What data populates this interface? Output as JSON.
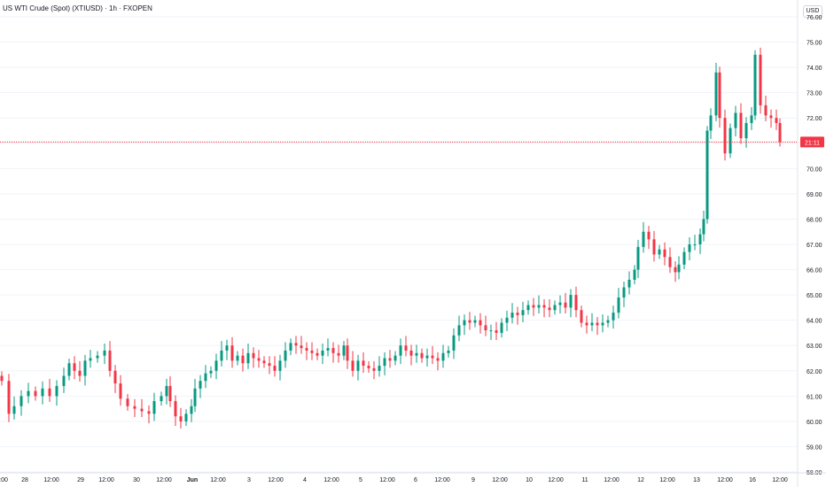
{
  "chart_data": {
    "type": "candlestick",
    "title": "US WTI Crude (Spot) (XTIUSD) · 1h · FXOPEN",
    "currency": "USD",
    "ylim": [
      58,
      76
    ],
    "y_ticks": [
      "76.00",
      "75.00",
      "74.00",
      "73.00",
      "72.00",
      "71.00",
      "70.00",
      "69.00",
      "68.00",
      "67.00",
      "66.00",
      "65.00",
      "64.00",
      "63.00",
      "62.00",
      "61.00",
      "60.00",
      "59.00",
      "58.00"
    ],
    "x_ticks": [
      ":00",
      "28",
      "12:00",
      "29",
      "12:00",
      "30",
      "12:00",
      "Jun",
      "12:00",
      "3",
      "12:00",
      "4",
      "12:00",
      "5",
      "12:00",
      "6",
      "12:00",
      "9",
      "12:00",
      "10",
      "12:00",
      "11",
      "12:00",
      "12",
      "12:00",
      "13",
      "12:00",
      "16",
      "12:00"
    ],
    "current_price_label": "21:11",
    "current_price": 71.05,
    "colors": {
      "up": "#089981",
      "down": "#f23645",
      "grid": "#f0f3fa",
      "price_line": "#f23645"
    },
    "ohlc_path": [
      [
        0,
        61.6
      ],
      [
        8,
        60.3
      ],
      [
        14,
        60.6
      ],
      [
        22,
        61.0
      ],
      [
        30,
        61.2
      ],
      [
        38,
        61.0
      ],
      [
        46,
        61.3
      ],
      [
        54,
        61.0
      ],
      [
        62,
        61.4
      ],
      [
        70,
        61.8
      ],
      [
        76,
        62.3
      ],
      [
        82,
        62.0
      ],
      [
        88,
        61.8
      ],
      [
        94,
        62.4
      ],
      [
        100,
        62.5
      ],
      [
        108,
        62.6
      ],
      [
        116,
        62.8
      ],
      [
        122,
        62.0
      ],
      [
        128,
        61.5
      ],
      [
        134,
        60.9
      ],
      [
        142,
        60.6
      ],
      [
        150,
        60.5
      ],
      [
        158,
        60.4
      ],
      [
        166,
        60.3
      ],
      [
        172,
        60.8
      ],
      [
        180,
        61.0
      ],
      [
        186,
        61.4
      ],
      [
        190,
        60.8
      ],
      [
        196,
        60.2
      ],
      [
        202,
        60.0
      ],
      [
        208,
        60.3
      ],
      [
        214,
        60.6
      ],
      [
        218,
        61.3
      ],
      [
        224,
        61.6
      ],
      [
        230,
        61.9
      ],
      [
        236,
        62.0
      ],
      [
        242,
        62.4
      ],
      [
        248,
        62.8
      ],
      [
        254,
        63.0
      ],
      [
        260,
        62.4
      ],
      [
        266,
        62.6
      ],
      [
        272,
        62.3
      ],
      [
        278,
        62.7
      ],
      [
        284,
        62.5
      ],
      [
        290,
        62.4
      ],
      [
        296,
        62.3
      ],
      [
        302,
        62.2
      ],
      [
        308,
        62.0
      ],
      [
        314,
        62.4
      ],
      [
        320,
        62.8
      ],
      [
        326,
        63.1
      ],
      [
        332,
        63.0
      ],
      [
        338,
        62.9
      ],
      [
        344,
        62.8
      ],
      [
        350,
        62.7
      ],
      [
        356,
        62.6
      ],
      [
        362,
        62.8
      ],
      [
        368,
        62.9
      ],
      [
        374,
        62.7
      ],
      [
        380,
        62.6
      ],
      [
        386,
        63.0
      ],
      [
        390,
        62.4
      ],
      [
        396,
        62.0
      ],
      [
        402,
        62.4
      ],
      [
        408,
        62.2
      ],
      [
        414,
        62.1
      ],
      [
        420,
        62.0
      ],
      [
        426,
        62.2
      ],
      [
        432,
        62.5
      ],
      [
        438,
        62.4
      ],
      [
        444,
        62.6
      ],
      [
        450,
        63.0
      ],
      [
        456,
        62.8
      ],
      [
        462,
        62.6
      ],
      [
        468,
        62.7
      ],
      [
        474,
        62.5
      ],
      [
        480,
        62.6
      ],
      [
        486,
        62.5
      ],
      [
        492,
        62.4
      ],
      [
        498,
        62.7
      ],
      [
        504,
        62.8
      ],
      [
        510,
        63.4
      ],
      [
        516,
        63.8
      ],
      [
        522,
        64.0
      ],
      [
        528,
        63.9
      ],
      [
        534,
        64.0
      ],
      [
        540,
        63.8
      ],
      [
        546,
        63.6
      ],
      [
        552,
        63.6
      ],
      [
        558,
        63.5
      ],
      [
        564,
        63.9
      ],
      [
        570,
        64.1
      ],
      [
        576,
        64.3
      ],
      [
        582,
        64.2
      ],
      [
        588,
        64.4
      ],
      [
        594,
        64.6
      ],
      [
        600,
        64.5
      ],
      [
        606,
        64.6
      ],
      [
        612,
        64.5
      ],
      [
        618,
        64.4
      ],
      [
        624,
        64.6
      ],
      [
        630,
        64.7
      ],
      [
        636,
        64.5
      ],
      [
        642,
        65.0
      ],
      [
        648,
        64.4
      ],
      [
        654,
        63.9
      ],
      [
        660,
        63.8
      ],
      [
        666,
        63.9
      ],
      [
        672,
        63.8
      ],
      [
        678,
        63.9
      ],
      [
        684,
        64.0
      ],
      [
        690,
        64.3
      ],
      [
        696,
        64.9
      ],
      [
        702,
        65.3
      ],
      [
        708,
        65.6
      ],
      [
        714,
        66.0
      ],
      [
        718,
        66.9
      ],
      [
        724,
        67.5
      ],
      [
        730,
        67.2
      ],
      [
        736,
        66.6
      ],
      [
        742,
        66.8
      ],
      [
        748,
        66.5
      ],
      [
        754,
        66.1
      ],
      [
        760,
        65.9
      ],
      [
        764,
        66.2
      ],
      [
        770,
        66.7
      ],
      [
        776,
        67.0
      ],
      [
        782,
        67.0
      ],
      [
        788,
        67.4
      ],
      [
        792,
        68.0
      ],
      [
        796,
        71.5
      ],
      [
        800,
        72.1
      ],
      [
        806,
        73.8
      ],
      [
        810,
        72.0
      ],
      [
        816,
        70.6
      ],
      [
        822,
        71.6
      ],
      [
        828,
        72.2
      ],
      [
        834,
        71.2
      ],
      [
        840,
        71.8
      ],
      [
        846,
        72.1
      ],
      [
        850,
        74.5
      ],
      [
        856,
        72.5
      ],
      [
        862,
        72.1
      ],
      [
        868,
        72.0
      ],
      [
        874,
        71.8
      ],
      [
        878,
        71.05
      ]
    ]
  }
}
